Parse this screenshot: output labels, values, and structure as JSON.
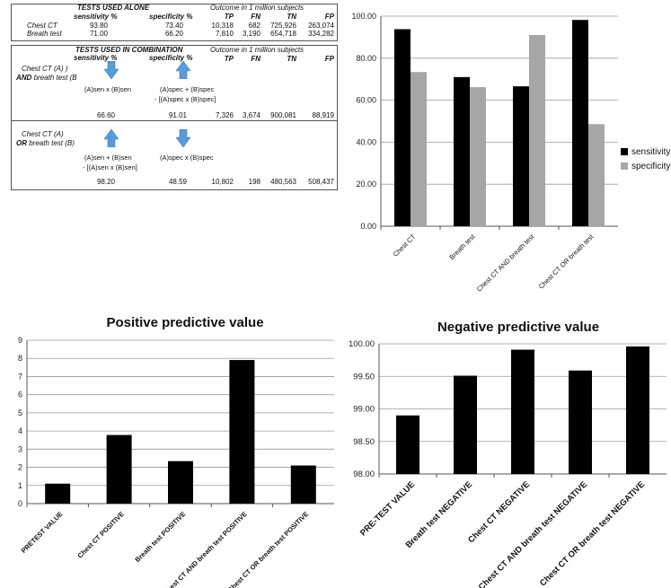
{
  "table_alone": {
    "header": "TESTS USED ALONE",
    "outcome_caption": "Outcome in 1 million subjects",
    "col_sensitivity": "sensitivity %",
    "col_specificity": "specificity %",
    "col_tp": "TP",
    "col_fn": "FN",
    "col_tn": "TN",
    "col_fp": "FP",
    "rows": [
      {
        "name": "Chest CT",
        "sensitivity": "93.80",
        "specificity": "73.40",
        "tp": "10,318",
        "fn": "682",
        "tn": "725,926",
        "fp": "263,074"
      },
      {
        "name": "Breath test",
        "sensitivity": "71.00",
        "specificity": "66.20",
        "tp": "7,810",
        "fn": "3,190",
        "tn": "654,718",
        "fp": "334,282"
      }
    ]
  },
  "table_combo": {
    "header": "TESTS USED IN COMBINATION",
    "outcome_caption": "Outcome in 1 million subjects",
    "col_sensitivity": "sensitivity %",
    "col_specificity": "specificity %",
    "col_tp": "TP",
    "col_fn": "FN",
    "col_tn": "TN",
    "col_fp": "FP",
    "and_row": {
      "label_line1": "Chest CT (A) )",
      "label_op": "AND",
      "label_line2_rest": " breath test (B",
      "sens_formula": "(A)sen x (B)sen",
      "spec_formula_1": "(A)spec + (B)spec",
      "spec_formula_2": "- [(A)spec x (B)spec]",
      "sensitivity": "66.60",
      "specificity": "91.01",
      "tp": "7,326",
      "fn": "3,674",
      "tn": "900,081",
      "fp": "88,919"
    },
    "or_row": {
      "label_line1": "Chest CT (A)",
      "label_op": "OR",
      "label_line2_rest": " breath test (B)",
      "sens_formula_1": "(A)sen + (B)sen",
      "sens_formula_2": "- [(A)sen x (B)sen]",
      "spec_formula": "(A)spec x (B)spec",
      "sensitivity": "98.20",
      "specificity": "48.59",
      "tp": "10,802",
      "fn": "198",
      "tn": "480,563",
      "fp": "508,437"
    }
  },
  "chart_data": [
    {
      "type": "bar",
      "title": "",
      "categories": [
        "Chest CT",
        "Breath test",
        "Chest CT AND breath test",
        "Chest CT OR breath test"
      ],
      "series": [
        {
          "name": "sensitivity %",
          "values": [
            93.8,
            71.0,
            66.6,
            98.2
          ],
          "color": "#000000"
        },
        {
          "name": "specificity %",
          "values": [
            73.4,
            66.2,
            91.01,
            48.59
          ],
          "color": "#a6a6a6"
        }
      ],
      "ylim": [
        0,
        100
      ],
      "yticks": [
        "0.00",
        "20.00",
        "40.00",
        "60.00",
        "80.00",
        "100.00"
      ],
      "legend": "right",
      "grid": true
    },
    {
      "type": "bar",
      "title": "Positive predictive value",
      "categories": [
        "PRETEST VALUE",
        "Chest CT POSITIVE",
        "Breath test POSITIVE",
        "Chest CT AND breath test POSITIVE",
        "Chest CT OR breath test POSITIVE"
      ],
      "values": [
        1.1,
        3.78,
        2.34,
        7.91,
        2.1
      ],
      "ylim": [
        0,
        9
      ],
      "yticks": [
        "0",
        "1",
        "2",
        "3",
        "4",
        "5",
        "6",
        "7",
        "8",
        "9"
      ],
      "grid": true
    },
    {
      "type": "bar",
      "title": "Negative predictive value",
      "categories": [
        "PRE-TEST VALUE",
        "Breath test NEGATIVE",
        "Chest CT NEGATIVE",
        "Chest CT AND breath test NEGATIVE",
        "Chest CT OR breath test NEGATIVE"
      ],
      "values": [
        98.9,
        99.51,
        99.91,
        99.59,
        99.96
      ],
      "ylim": [
        98,
        100
      ],
      "yticks": [
        "98.00",
        "98.50",
        "99.00",
        "99.50",
        "100.00"
      ],
      "grid": true
    }
  ]
}
